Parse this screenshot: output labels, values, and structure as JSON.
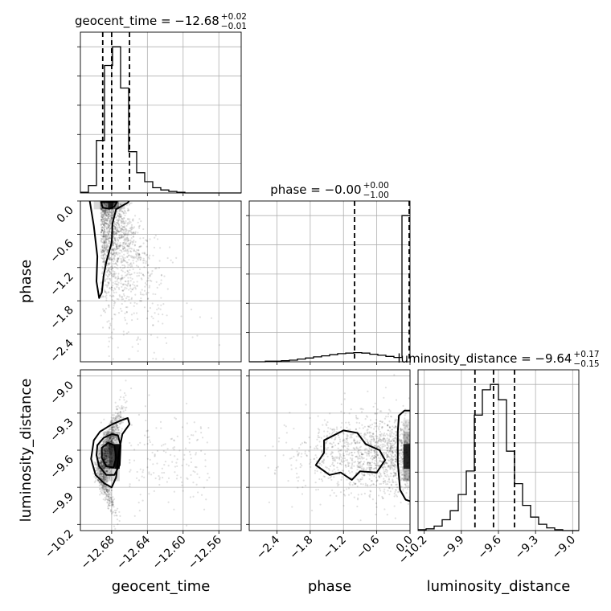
{
  "chart_data": {
    "type": "corner",
    "parameters": [
      "geocent_time",
      "phase",
      "luminosity_distance"
    ],
    "titles": {
      "geocent_time": {
        "label": "geocent_time",
        "median": "−12.68",
        "plus": "+0.02",
        "minus": "−0.01"
      },
      "phase": {
        "label": "phase",
        "median": "−0.00",
        "plus": "+0.00",
        "minus": "−1.00"
      },
      "luminosity_distance": {
        "label": "luminosity_distance",
        "median": "−9.64",
        "plus": "+0.17",
        "minus": "−0.15"
      }
    },
    "axes": {
      "geocent_time": {
        "range": [
          -12.715,
          -12.535
        ],
        "ticks": [
          -12.68,
          -12.64,
          -12.6,
          -12.56
        ],
        "tick_labels": [
          "−12.68",
          "−12.64",
          "−12.60",
          "−12.56"
        ]
      },
      "phase": {
        "range": [
          -2.9,
          0.0
        ],
        "ticks": [
          -2.4,
          -1.8,
          -1.2,
          -0.6,
          0.0
        ],
        "tick_labels": [
          "−2.4",
          "−1.8",
          "−1.2",
          "−0.6",
          "0.0"
        ]
      },
      "luminosity_distance": {
        "range": [
          -10.25,
          -8.95
        ],
        "ticks": [
          -10.2,
          -9.9,
          -9.6,
          -9.3,
          -9.0
        ],
        "tick_labels": [
          "−10.2",
          "−9.9",
          "−9.6",
          "−9.3",
          "−9.0"
        ]
      }
    },
    "quantiles": {
      "geocent_time": [
        -12.69,
        -12.68,
        -12.66
      ],
      "phase": [
        -1.0,
        0.0
      ],
      "luminosity_distance": [
        -9.79,
        -9.64,
        -9.47
      ]
    },
    "histograms": {
      "geocent_time": {
        "bin_edges": [
          -12.715,
          -12.706,
          -12.697,
          -12.688,
          -12.679,
          -12.67,
          -12.661,
          -12.652,
          -12.643,
          -12.634,
          -12.625,
          -12.616,
          -12.607,
          -12.598,
          -12.589,
          -12.58,
          -12.571,
          -12.562,
          -12.553,
          -12.544,
          -12.535
        ],
        "counts": [
          1,
          10,
          70,
          170,
          195,
          140,
          55,
          27,
          15,
          7,
          4,
          2,
          1,
          0,
          0,
          0,
          0,
          0,
          0,
          0
        ]
      },
      "phase": {
        "bin_edges": [
          -2.9,
          -2.755,
          -2.61,
          -2.465,
          -2.32,
          -2.175,
          -2.03,
          -1.885,
          -1.74,
          -1.595,
          -1.45,
          -1.305,
          -1.16,
          -1.015,
          -0.87,
          -0.725,
          -0.58,
          -0.435,
          -0.29,
          -0.145,
          0.0
        ],
        "counts": [
          0,
          0,
          1,
          1,
          2,
          3,
          5,
          7,
          9,
          11,
          13,
          15,
          16,
          17,
          16,
          14,
          12,
          10,
          8,
          270
        ]
      },
      "luminosity_distance": {
        "bin_edges": [
          -10.25,
          -10.185,
          -10.12,
          -10.055,
          -9.99,
          -9.925,
          -9.86,
          -9.795,
          -9.73,
          -9.665,
          -9.6,
          -9.535,
          -9.47,
          -9.405,
          -9.34,
          -9.275,
          -9.21,
          -9.145,
          -9.08,
          -9.015,
          -8.95
        ],
        "counts": [
          1,
          2,
          5,
          12,
          22,
          40,
          66,
          128,
          156,
          162,
          145,
          88,
          52,
          28,
          15,
          7,
          3,
          1,
          0,
          0
        ]
      }
    },
    "grid": true
  }
}
